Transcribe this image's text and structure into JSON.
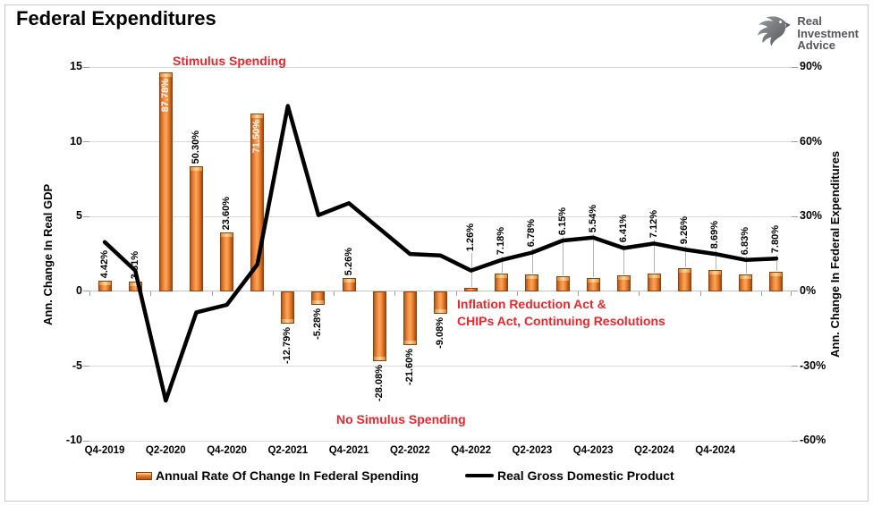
{
  "title": "Federal Expenditures",
  "logo": {
    "icon": "eagle-logo-icon",
    "line1": "Real",
    "line2": "Investment",
    "line3": "Advice"
  },
  "annotations": {
    "stimulus": "Stimulus Spending",
    "ira": "Inflation Reduction Act &\nCHIPs Act, Continuing Resolutions",
    "no_stimulus": "No Simulus Spending"
  },
  "legend": [
    {
      "swatch": "orange-bar",
      "label": "Annual Rate Of Change In Federal Spending"
    },
    {
      "swatch": "black-line",
      "label": "Real Gross Domestic Product"
    }
  ],
  "colors": {
    "bar_main": "#e87a27",
    "bar_edge_dark": "#9e4a12",
    "bar_border": "#8a4310",
    "bar_cap": "#ffd9a0",
    "line": "#000000",
    "annotation_red": "#e8262b",
    "gridline": "#d9d9d9",
    "leader": "#b3b3b3",
    "logo_gray": "#77787b"
  },
  "chart_data": {
    "type": "bar+line combo",
    "categories": [
      "Q4-2019",
      "Q1-2020",
      "Q2-2020",
      "Q3-2020",
      "Q4-2020",
      "Q1-2021",
      "Q2-2021",
      "Q3-2021",
      "Q4-2021",
      "Q1-2022",
      "Q2-2022",
      "Q3-2022",
      "Q4-2022",
      "Q1-2023",
      "Q2-2023",
      "Q3-2023",
      "Q4-2023",
      "Q1-2024",
      "Q2-2024",
      "Q3-2024",
      "Q4-2024",
      "Q1-2025",
      "Q2-2025"
    ],
    "x_tick_labels": [
      "Q4-2019",
      "Q2-2020",
      "Q4-2020",
      "Q2-2021",
      "Q4-2021",
      "Q2-2022",
      "Q4-2022",
      "Q2-2023",
      "Q4-2023",
      "Q2-2024",
      "Q4-2024"
    ],
    "series": [
      {
        "name": "Annual Rate Of Change In Federal Spending",
        "type": "bar",
        "axis": "right",
        "values": [
          4.42,
          3.81,
          87.78,
          50.3,
          23.6,
          71.5,
          -12.79,
          -5.28,
          5.26,
          -28.08,
          -21.6,
          -9.08,
          1.26,
          7.18,
          6.78,
          6.15,
          5.54,
          6.41,
          7.12,
          9.26,
          8.69,
          6.83,
          7.8
        ],
        "labels": [
          "4.42%",
          "3.81%",
          "87.78%",
          "50.30%",
          "23.60%",
          "71.50%",
          "-12.79%",
          "-5.28%",
          "5.26%",
          "-28.08%",
          "-21.60%",
          "-9.08%",
          "1.26%",
          "7.18%",
          "6.78%",
          "6.15%",
          "5.54%",
          "6.41%",
          "7.12%",
          "9.26%",
          "8.69%",
          "6.83%",
          "7.80%"
        ],
        "label_placement": [
          "above",
          "above",
          "inside",
          "above",
          "above",
          "inside",
          "below",
          "below",
          "above",
          "below",
          "below",
          "below",
          "leader",
          "leader",
          "leader",
          "leader",
          "leader",
          "leader",
          "leader",
          "leader",
          "leader",
          "leader",
          "leader"
        ],
        "label_lift": [
          0,
          0,
          0,
          0,
          0,
          0,
          0,
          0,
          0,
          0,
          0,
          0,
          16,
          0,
          0,
          0,
          0,
          0,
          0,
          0,
          0,
          0,
          0
        ]
      },
      {
        "name": "Real Gross Domestic Product",
        "type": "line",
        "axis": "left",
        "values": [
          3.3,
          1.4,
          -7.3,
          -1.4,
          -0.9,
          1.8,
          12.4,
          5.1,
          5.9,
          4.2,
          2.5,
          2.4,
          1.4,
          2.1,
          2.6,
          3.4,
          3.6,
          2.9,
          3.2,
          2.8,
          2.5,
          2.1,
          2.2
        ]
      }
    ],
    "left_axis": {
      "title": "Ann. Change In Real GDP",
      "min": -10,
      "max": 15,
      "tick_values": [
        15,
        10,
        5,
        0,
        -5,
        -10
      ],
      "tick_labels": [
        "15",
        "10",
        "5",
        "0",
        "-5",
        "-10"
      ]
    },
    "right_axis": {
      "title": "Ann. Change In Federal Expenditures",
      "min": -60,
      "max": 90,
      "tick_values": [
        90,
        60,
        30,
        0,
        -30,
        -60
      ],
      "tick_labels": [
        "90%",
        "60%",
        "30%",
        "0%",
        "-30%",
        "-60%"
      ]
    },
    "grid": "horizontal-only",
    "legend_position": "bottom"
  }
}
